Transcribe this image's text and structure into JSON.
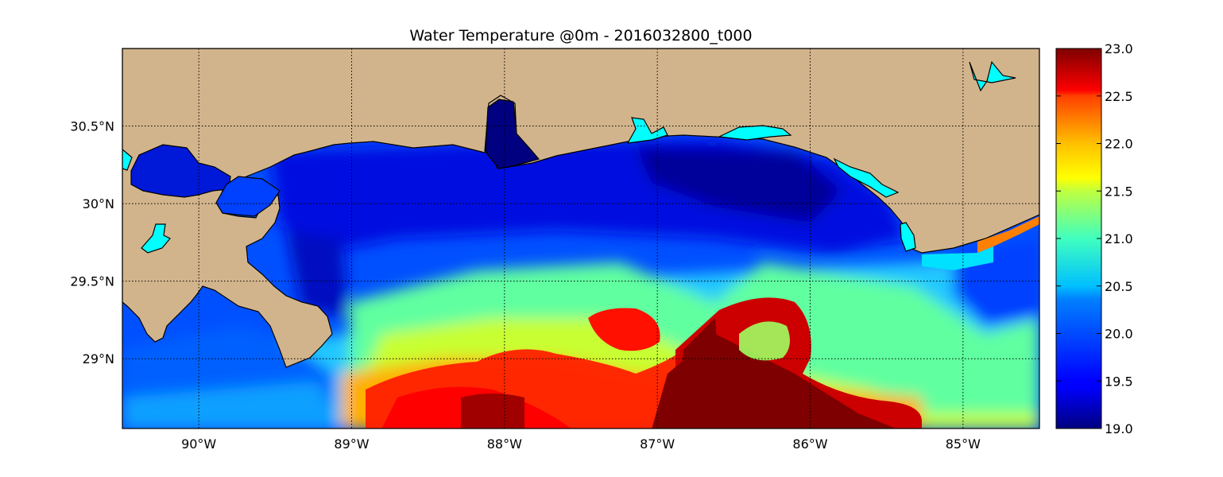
{
  "title": "Water Temperature @0m - 2016032800_t000",
  "map": {
    "lon_range": [
      -90.5,
      -84.5
    ],
    "lat_range": [
      28.55,
      31.0
    ],
    "grid": true,
    "land_color": "#d2b48c",
    "coast_color": "#000000",
    "lon_ticks": [
      {
        "value": -90,
        "label": "90°W"
      },
      {
        "value": -89,
        "label": "89°W"
      },
      {
        "value": -88,
        "label": "88°W"
      },
      {
        "value": -87,
        "label": "87°W"
      },
      {
        "value": -86,
        "label": "86°W"
      },
      {
        "value": -85,
        "label": "85°W"
      }
    ],
    "lat_ticks": [
      {
        "value": 30.5,
        "label": "30.5°N"
      },
      {
        "value": 30.0,
        "label": "30°N"
      },
      {
        "value": 29.5,
        "label": "29.5°N"
      },
      {
        "value": 29.0,
        "label": "29°N"
      }
    ]
  },
  "colorbar": {
    "colormap": "jet",
    "min": 19.0,
    "max": 23.0,
    "ticks": [
      "19.0",
      "19.5",
      "20.0",
      "20.5",
      "21.0",
      "21.5",
      "22.0",
      "22.5",
      "23.0"
    ]
  }
}
